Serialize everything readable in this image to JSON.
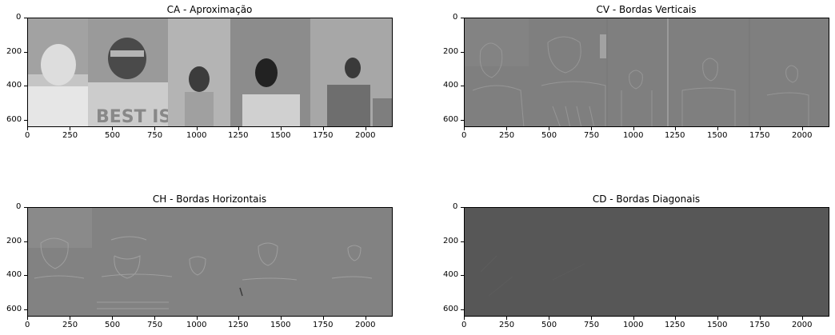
{
  "panels": [
    {
      "title": "CA - Aproximação",
      "x_ticks": [
        "0",
        "250",
        "500",
        "750",
        "1000",
        "1250",
        "1500",
        "1750",
        "2000"
      ],
      "y_ticks": [
        "0",
        "200",
        "400",
        "600"
      ],
      "image_kind": "approximation"
    },
    {
      "title": "CV - Bordas Verticais",
      "x_ticks": [
        "0",
        "250",
        "500",
        "750",
        "1000",
        "1250",
        "1500",
        "1750",
        "2000"
      ],
      "y_ticks": [
        "0",
        "200",
        "400",
        "600"
      ],
      "image_kind": "vertical-edges"
    },
    {
      "title": "CH - Bordas Horizontais",
      "x_ticks": [
        "0",
        "250",
        "500",
        "750",
        "1000",
        "1250",
        "1500",
        "1750",
        "2000"
      ],
      "y_ticks": [
        "0",
        "200",
        "400",
        "600"
      ],
      "image_kind": "horizontal-edges"
    },
    {
      "title": "CD - Bordas Diagonais",
      "x_ticks": [
        "0",
        "250",
        "500",
        "750",
        "1000",
        "1250",
        "1500",
        "1750",
        "2000"
      ],
      "y_ticks": [
        "0",
        "200",
        "400",
        "600"
      ],
      "image_kind": "diagonal-edges"
    }
  ],
  "axis": {
    "x_range": [
      0,
      2160
    ],
    "y_range": [
      0,
      645
    ]
  },
  "colors": {
    "approximation_bg": "#a9a9a9",
    "vertical_bg": "#7f7f7f",
    "horizontal_bg": "#828282",
    "diagonal_bg": "#575757"
  }
}
